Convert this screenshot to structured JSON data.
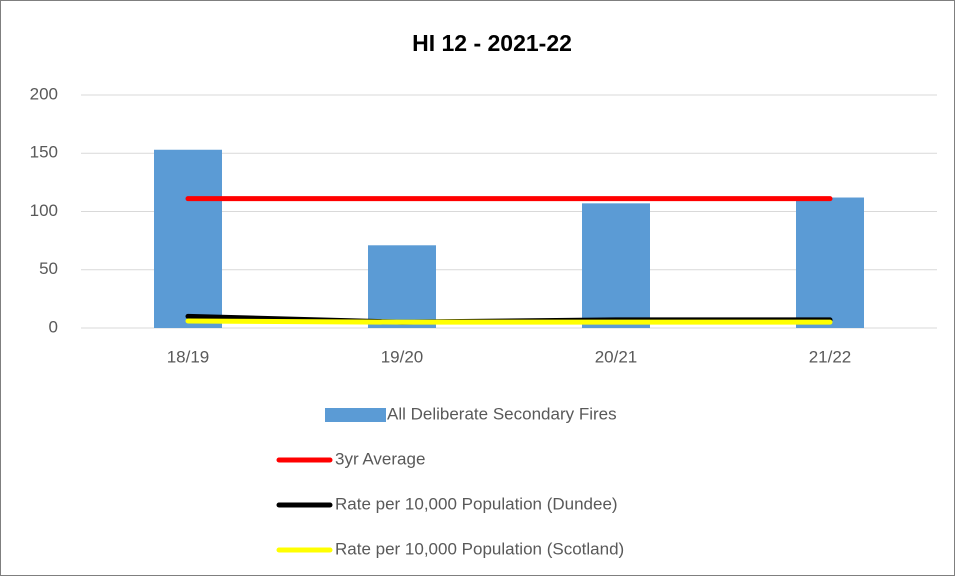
{
  "chart_data": {
    "type": "bar",
    "title": "HI 12 - 2021-22",
    "categories": [
      "18/19",
      "19/20",
      "20/21",
      "21/22"
    ],
    "series": [
      {
        "name": "All Deliberate Secondary Fires",
        "type": "bar",
        "color": "#5b9bd5",
        "values": [
          153,
          71,
          107,
          112
        ]
      },
      {
        "name": "3yr Average",
        "type": "line",
        "color": "#ff0000",
        "values": [
          111,
          111,
          111,
          111
        ]
      },
      {
        "name": "Rate per 10,000 Population (Dundee)",
        "type": "line",
        "color": "#000000",
        "values": [
          10,
          5,
          7,
          7
        ]
      },
      {
        "name": "Rate per 10,000 Population (Scotland)",
        "type": "line",
        "color": "#ffff00",
        "values": [
          6,
          5,
          5,
          5
        ]
      }
    ],
    "ylim": [
      0,
      200
    ],
    "yticks": [
      0,
      50,
      100,
      150,
      200
    ],
    "grid": true,
    "legend": "bottom"
  }
}
